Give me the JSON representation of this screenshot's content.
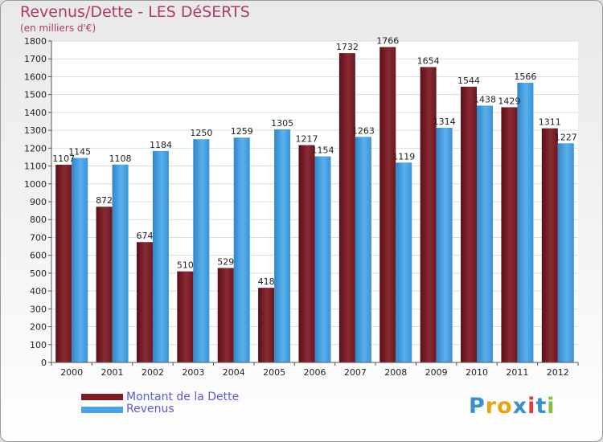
{
  "title": "Revenus/Dette - LES DéSERTS",
  "subtitle": "(en milliers d'€)",
  "logo": {
    "text": "Proxiti",
    "colors": [
      "#3a8fd1",
      "#e8a317",
      "#e8a317",
      "#3a8fd1",
      "#e23a3a",
      "#3a8fd1",
      "#7ac143"
    ]
  },
  "colors": {
    "dette": "#7a1c24",
    "revenus": "#4aa3e6",
    "title": "#b03a6a",
    "legend_text": "#5a5ad6"
  },
  "legend": [
    {
      "label": "Montant de la Dette",
      "color": "#7a1c24"
    },
    {
      "label": "Revenus",
      "color": "#4aa3e6"
    }
  ],
  "chart_data": {
    "type": "bar",
    "categories": [
      "2000",
      "2001",
      "2002",
      "2003",
      "2004",
      "2005",
      "2006",
      "2007",
      "2008",
      "2009",
      "2010",
      "2011",
      "2012"
    ],
    "series": [
      {
        "name": "Montant de la Dette",
        "values": [
          1107,
          872,
          674,
          510,
          529,
          418,
          1217,
          1732,
          1766,
          1654,
          1544,
          1429,
          1311
        ]
      },
      {
        "name": "Revenus",
        "values": [
          1145,
          1108,
          1184,
          1250,
          1259,
          1305,
          1154,
          1263,
          1119,
          1314,
          1438,
          1566,
          1227
        ]
      }
    ],
    "data_labels": [
      [
        "1107",
        "872",
        "674",
        "510",
        "529",
        "418",
        "1217",
        "1732",
        "1766",
        "1654",
        "1544",
        "1429",
        "1311"
      ],
      [
        "1145",
        "1108",
        "1184",
        "1250",
        "1259",
        "1305",
        "1154",
        "1263",
        "1119",
        "1314",
        "1438",
        "1566",
        "1227"
      ]
    ],
    "title": "Revenus/Dette - LES DéSERTS",
    "ylabel": "(en milliers d'€)",
    "xlabel": "",
    "ylim": [
      0,
      1800
    ],
    "yticks": [
      0,
      100,
      200,
      300,
      400,
      500,
      600,
      700,
      800,
      900,
      1000,
      1100,
      1200,
      1300,
      1400,
      1500,
      1600,
      1700,
      1800
    ],
    "grid": true,
    "legend_position": "bottom-left"
  }
}
